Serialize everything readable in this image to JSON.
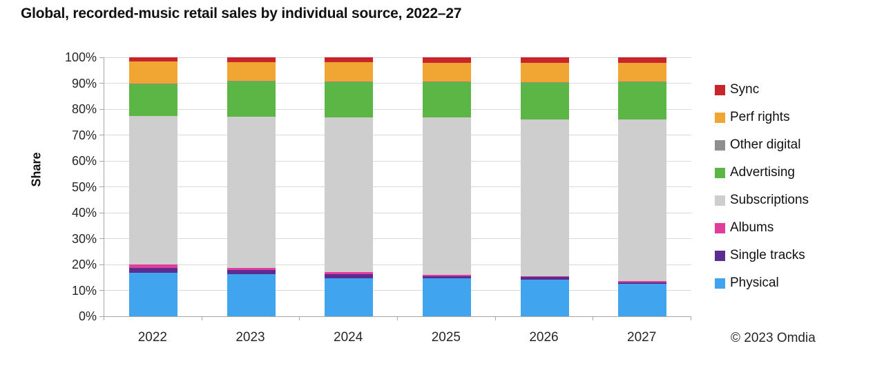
{
  "chart_data": {
    "type": "bar",
    "subtype": "stacked-100",
    "title": "Global, recorded-music retail sales by individual source, 2022–27",
    "ylabel": "Share",
    "footer": "© 2023 Omdia",
    "categories": [
      "2022",
      "2023",
      "2024",
      "2025",
      "2026",
      "2027"
    ],
    "yticks": [
      "0%",
      "10%",
      "20%",
      "30%",
      "40%",
      "50%",
      "60%",
      "70%",
      "80%",
      "90%",
      "100%"
    ],
    "ylim": [
      0,
      100
    ],
    "grid": true,
    "legend_position": "right",
    "legend_order_top_down": [
      "Sync",
      "Perf rights",
      "Other digital",
      "Advertising",
      "Subscriptions",
      "Albums",
      "Single tracks",
      "Physical"
    ],
    "series": [
      {
        "name": "Physical",
        "color": "#41a4ee",
        "values": [
          16.8,
          16.4,
          14.8,
          14.6,
          14.1,
          12.6
        ]
      },
      {
        "name": "Single tracks",
        "color": "#5b2d90",
        "values": [
          1.8,
          1.6,
          1.4,
          0.9,
          1.0,
          0.6
        ]
      },
      {
        "name": "Albums",
        "color": "#e23c9d",
        "values": [
          1.3,
          0.6,
          1.0,
          0.4,
          0.4,
          0.3
        ]
      },
      {
        "name": "Subscriptions",
        "color": "#cecece",
        "values": [
          57.4,
          58.4,
          59.7,
          61.0,
          60.5,
          62.5
        ]
      },
      {
        "name": "Advertising",
        "color": "#5bb646",
        "values": [
          12.4,
          13.7,
          13.6,
          13.6,
          14.1,
          14.3
        ]
      },
      {
        "name": "Other digital",
        "color": "#8f8f8f",
        "values": [
          0.3,
          0.3,
          0.3,
          0.3,
          0.3,
          0.3
        ]
      },
      {
        "name": "Perf rights",
        "color": "#f1a633",
        "values": [
          8.5,
          7.2,
          7.4,
          7.2,
          7.6,
          7.4
        ]
      },
      {
        "name": "Sync",
        "color": "#c7242b",
        "values": [
          1.5,
          1.8,
          1.8,
          2.0,
          2.0,
          2.0
        ]
      }
    ],
    "axis_color": "#a6a6a6",
    "gridline_color": "#d9d9d9"
  }
}
